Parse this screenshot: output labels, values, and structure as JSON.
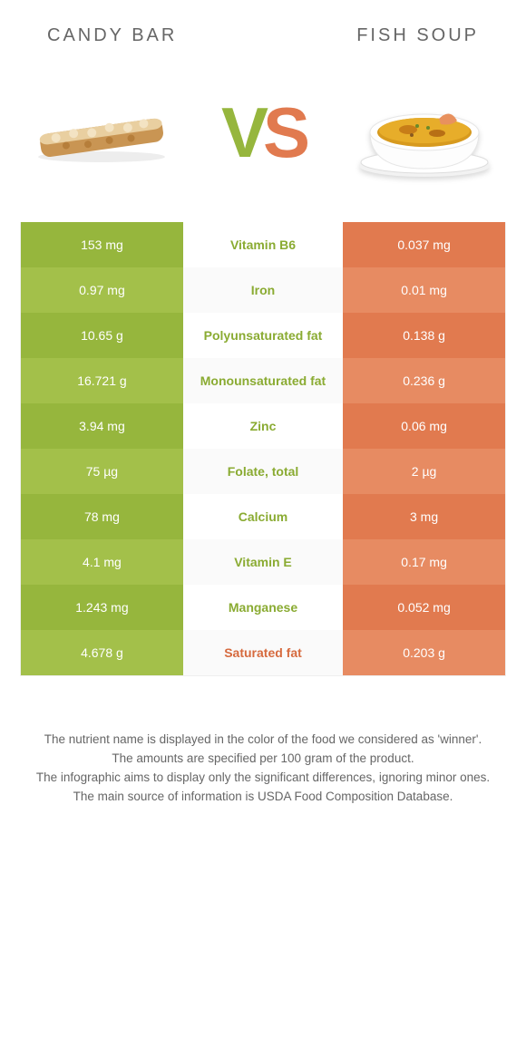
{
  "header": {
    "left_title": "CANDY BAR",
    "right_title": "FISH SOUP"
  },
  "vs": {
    "v": "V",
    "s": "S"
  },
  "colors": {
    "left_base": "#96b63d",
    "left_alt": "#a3c04a",
    "right_base": "#e17a4f",
    "right_alt": "#e78b62",
    "mid_alt_bg": "#fafafa",
    "text": "#555555",
    "footnote": "#666666"
  },
  "comparison": {
    "type": "table",
    "columns": [
      "candy_bar_value",
      "nutrient",
      "fish_soup_value"
    ],
    "rows": [
      {
        "left": "153 mg",
        "name": "Vitamin B6",
        "right": "0.037 mg",
        "winner": "left"
      },
      {
        "left": "0.97 mg",
        "name": "Iron",
        "right": "0.01 mg",
        "winner": "left"
      },
      {
        "left": "10.65 g",
        "name": "Polyunsaturated fat",
        "right": "0.138 g",
        "winner": "left"
      },
      {
        "left": "16.721 g",
        "name": "Monounsaturated fat",
        "right": "0.236 g",
        "winner": "left"
      },
      {
        "left": "3.94 mg",
        "name": "Zinc",
        "right": "0.06 mg",
        "winner": "left"
      },
      {
        "left": "75 µg",
        "name": "Folate, total",
        "right": "2 µg",
        "winner": "left"
      },
      {
        "left": "78 mg",
        "name": "Calcium",
        "right": "3 mg",
        "winner": "left"
      },
      {
        "left": "4.1 mg",
        "name": "Vitamin E",
        "right": "0.17 mg",
        "winner": "left"
      },
      {
        "left": "1.243 mg",
        "name": "Manganese",
        "right": "0.052 mg",
        "winner": "left"
      },
      {
        "left": "4.678 g",
        "name": "Saturated fat",
        "right": "0.203 g",
        "winner": "right"
      }
    ]
  },
  "footnotes": [
    "The nutrient name is displayed in the color of the food we considered as 'winner'.",
    "The amounts are specified per 100 gram of the product.",
    "The infographic aims to display only the significant differences, ignoring minor ones.",
    "The main source of information is USDA Food Composition Database."
  ]
}
